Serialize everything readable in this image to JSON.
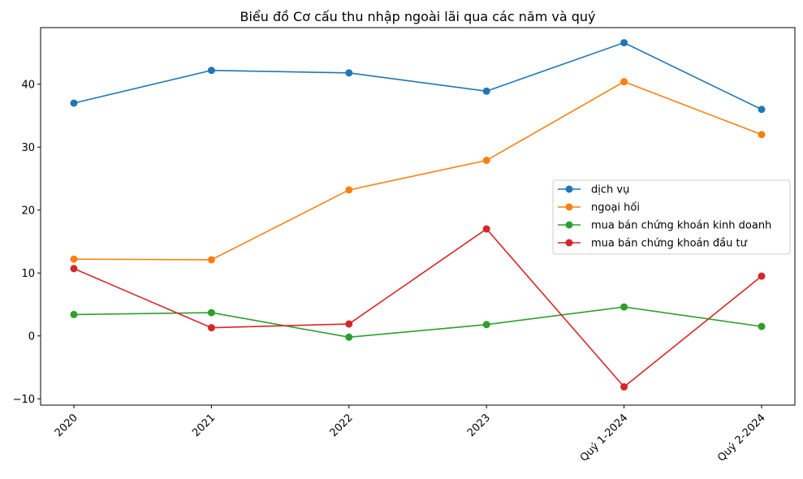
{
  "chart_data": {
    "type": "line",
    "title": "Biểu đồ Cơ cấu thu nhập ngoài lãi qua các năm và quý",
    "xlabel": "",
    "ylabel": "",
    "categories": [
      "2020",
      "2021",
      "2022",
      "2023",
      "Quý  1-2024",
      "Quý  2-2024"
    ],
    "ylim": [
      -11,
      49
    ],
    "yticks": [
      -10,
      0,
      10,
      20,
      30,
      40
    ],
    "grid": false,
    "legend_position": "center-right",
    "series": [
      {
        "name": "dịch vụ",
        "color": "#1f77b4",
        "values": [
          37.0,
          42.2,
          41.8,
          38.9,
          46.6,
          36.0
        ]
      },
      {
        "name": "ngoại hối",
        "color": "#ff7f0e",
        "values": [
          12.2,
          12.1,
          23.2,
          27.9,
          40.4,
          32.0
        ]
      },
      {
        "name": "mua bán chứng khoán kinh doanh",
        "color": "#2ca02c",
        "values": [
          3.4,
          3.7,
          -0.2,
          1.8,
          4.6,
          1.5
        ]
      },
      {
        "name": "mua bán chứng khoán đầu tư",
        "color": "#d62728",
        "values": [
          10.7,
          1.3,
          1.9,
          17.0,
          -8.1,
          9.5
        ]
      }
    ]
  }
}
